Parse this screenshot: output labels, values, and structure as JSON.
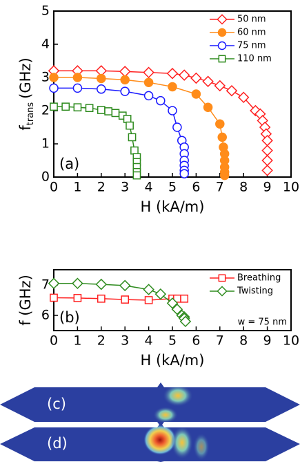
{
  "chart_data": [
    {
      "type": "line",
      "annotation": "(a)",
      "xlabel": "H (kA/m)",
      "ylabel": "f",
      "ylabel_sub": "trans",
      "ylabel_unit": "(GHz)",
      "xlim": [
        0,
        10
      ],
      "xticks": [
        0,
        1,
        2,
        3,
        4,
        5,
        6,
        7,
        8,
        9,
        10
      ],
      "ylim": [
        0,
        5
      ],
      "yticks": [
        0,
        1,
        2,
        3,
        4,
        5
      ],
      "legend": "upper right",
      "series": [
        {
          "name": "50 nm",
          "color": "#ff2020",
          "marker": "diamond",
          "filled": false,
          "x": [
            0,
            1,
            2,
            3,
            4,
            5,
            5.5,
            6,
            6.5,
            7,
            7.5,
            8,
            8.5,
            8.7,
            8.8,
            8.9,
            8.95,
            9,
            9,
            9,
            9
          ],
          "values": [
            3.2,
            3.2,
            3.2,
            3.18,
            3.15,
            3.12,
            3.07,
            2.98,
            2.88,
            2.75,
            2.6,
            2.4,
            2.0,
            1.9,
            1.7,
            1.5,
            1.3,
            1.1,
            0.8,
            0.5,
            0.2
          ]
        },
        {
          "name": "60 nm",
          "color": "#ff8c1a",
          "marker": "circle",
          "filled": true,
          "x": [
            0,
            1,
            2,
            3,
            4,
            5,
            6,
            6.5,
            7,
            7.1,
            7.15,
            7.2,
            7.2,
            7.2,
            7.2,
            7.2
          ],
          "values": [
            3.0,
            3.0,
            2.97,
            2.93,
            2.85,
            2.72,
            2.5,
            2.1,
            1.6,
            1.2,
            0.9,
            0.7,
            0.5,
            0.3,
            0.15,
            0.05
          ]
        },
        {
          "name": "75 nm",
          "color": "#1a1aff",
          "marker": "circle",
          "filled": false,
          "x": [
            0,
            1,
            2,
            3,
            4,
            4.5,
            5,
            5.2,
            5.4,
            5.5,
            5.5,
            5.5,
            5.5,
            5.5,
            5.5
          ],
          "values": [
            2.68,
            2.68,
            2.65,
            2.58,
            2.45,
            2.3,
            2.0,
            1.5,
            1.1,
            0.9,
            0.7,
            0.5,
            0.35,
            0.2,
            0.1
          ]
        },
        {
          "name": "110 nm",
          "color": "#2e8b1e",
          "marker": "square",
          "filled": false,
          "x": [
            0,
            0.5,
            1,
            1.5,
            2,
            2.3,
            2.6,
            2.9,
            3.1,
            3.2,
            3.3,
            3.4,
            3.5,
            3.5,
            3.5,
            3.5,
            3.5
          ],
          "values": [
            2.12,
            2.12,
            2.1,
            2.08,
            2.02,
            1.98,
            1.93,
            1.85,
            1.75,
            1.55,
            1.2,
            0.8,
            0.6,
            0.45,
            0.3,
            0.15,
            0.05
          ]
        }
      ]
    },
    {
      "type": "line",
      "annotation": "(b)",
      "note": "w = 75 nm",
      "xlabel": "H (kA/m)",
      "ylabel": "f (GHz)",
      "xlim": [
        0,
        10
      ],
      "xticks": [
        0,
        1,
        2,
        3,
        4,
        5,
        6,
        7,
        8,
        9,
        10
      ],
      "ylim": [
        5.5,
        7.5
      ],
      "yticks": [
        6,
        7
      ],
      "legend": "upper right",
      "series": [
        {
          "name": "Breathing",
          "color": "#ff2020",
          "marker": "square",
          "filled": false,
          "x": [
            0,
            1,
            2,
            3,
            4,
            5,
            5.2,
            5.5
          ],
          "values": [
            6.58,
            6.57,
            6.55,
            6.52,
            6.5,
            6.55,
            6.55,
            6.55
          ]
        },
        {
          "name": "Twisting",
          "color": "#2e8b1e",
          "marker": "diamond",
          "filled": false,
          "x": [
            0,
            1,
            2,
            3,
            4,
            4.5,
            5,
            5.2,
            5.4,
            5.5,
            5.5,
            5.55
          ],
          "values": [
            7.05,
            7.05,
            7.02,
            6.98,
            6.85,
            6.7,
            6.4,
            6.2,
            6.0,
            5.95,
            5.9,
            5.8
          ]
        }
      ]
    }
  ],
  "panels": [
    {
      "label": "(c)"
    },
    {
      "label": "(d)"
    }
  ]
}
